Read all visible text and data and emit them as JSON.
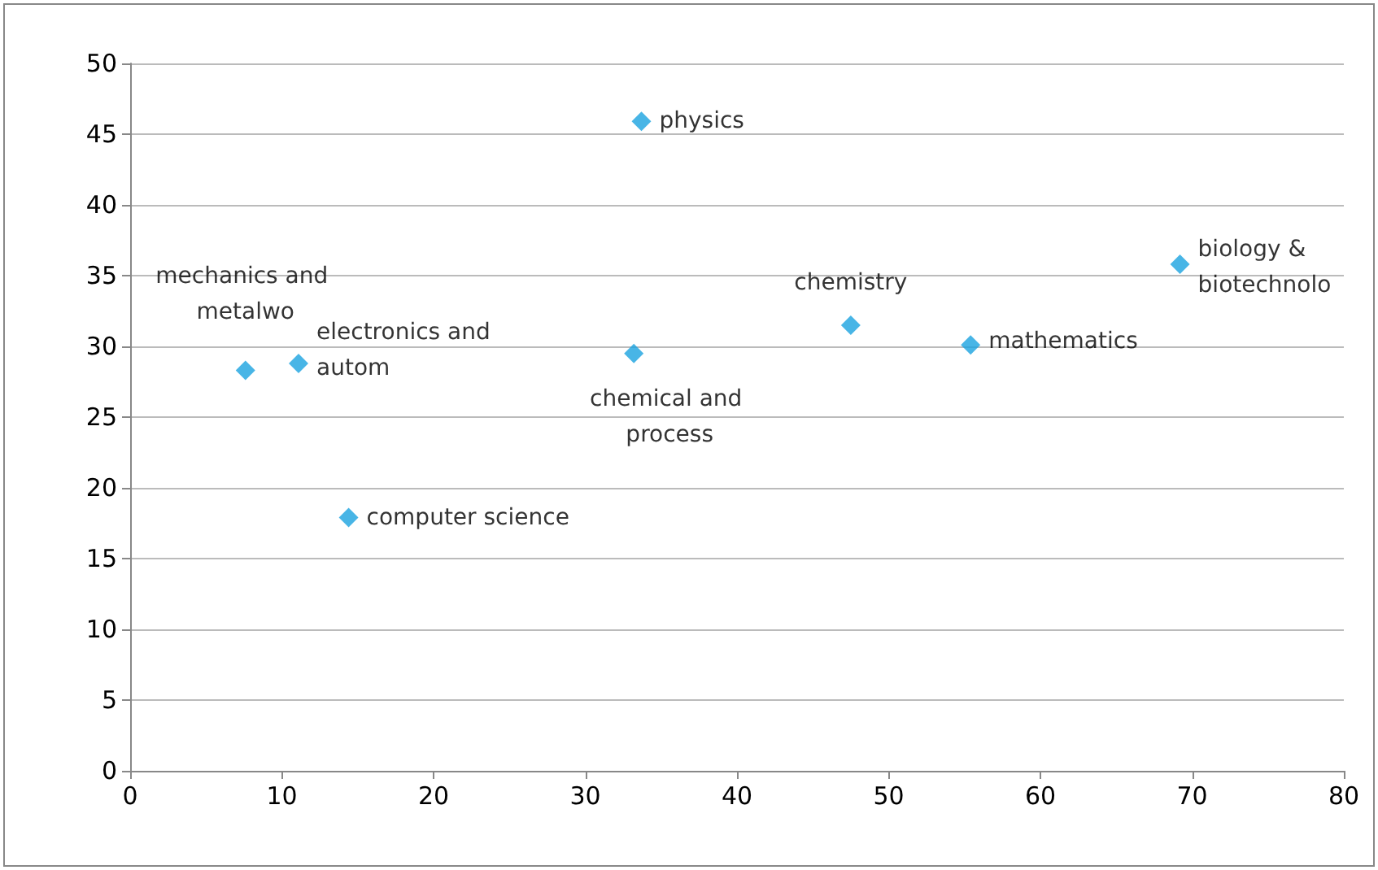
{
  "chart_data": {
    "type": "scatter",
    "marker": "diamond",
    "grid": "y",
    "x": [
      7.6,
      11.1,
      14.4,
      33.2,
      33.7,
      47.5,
      55.4,
      69.2
    ],
    "series": [
      {
        "color": "#1aa3e0",
        "values": [
          28.3,
          28.8,
          17.9,
          29.5,
          45.9,
          31.5,
          30.1,
          35.8
        ]
      }
    ],
    "xlim": [
      0,
      80
    ],
    "xticks": [
      0,
      10,
      20,
      30,
      40,
      50,
      60,
      70,
      80
    ],
    "ylim": [
      0,
      50
    ],
    "yticks": [
      0,
      5,
      10,
      15,
      20,
      25,
      30,
      35,
      40,
      45,
      50
    ],
    "annotations": [
      {
        "text": "mechanics and metalwo",
        "x": 7.6,
        "y": 28.3
      },
      {
        "text": "electronics and autom",
        "x": 11.1,
        "y": 28.8
      },
      {
        "text": "computer science",
        "x": 14.4,
        "y": 17.9
      },
      {
        "text": "chemical and process",
        "x": 33.2,
        "y": 29.5
      },
      {
        "text": "physics",
        "x": 33.7,
        "y": 45.9
      },
      {
        "text": "chemistry",
        "x": 47.5,
        "y": 31.5
      },
      {
        "text": "mathematics",
        "x": 55.4,
        "y": 30.1
      },
      {
        "text": "biology & biotechnolo",
        "x": 69.2,
        "y": 35.8
      }
    ]
  }
}
